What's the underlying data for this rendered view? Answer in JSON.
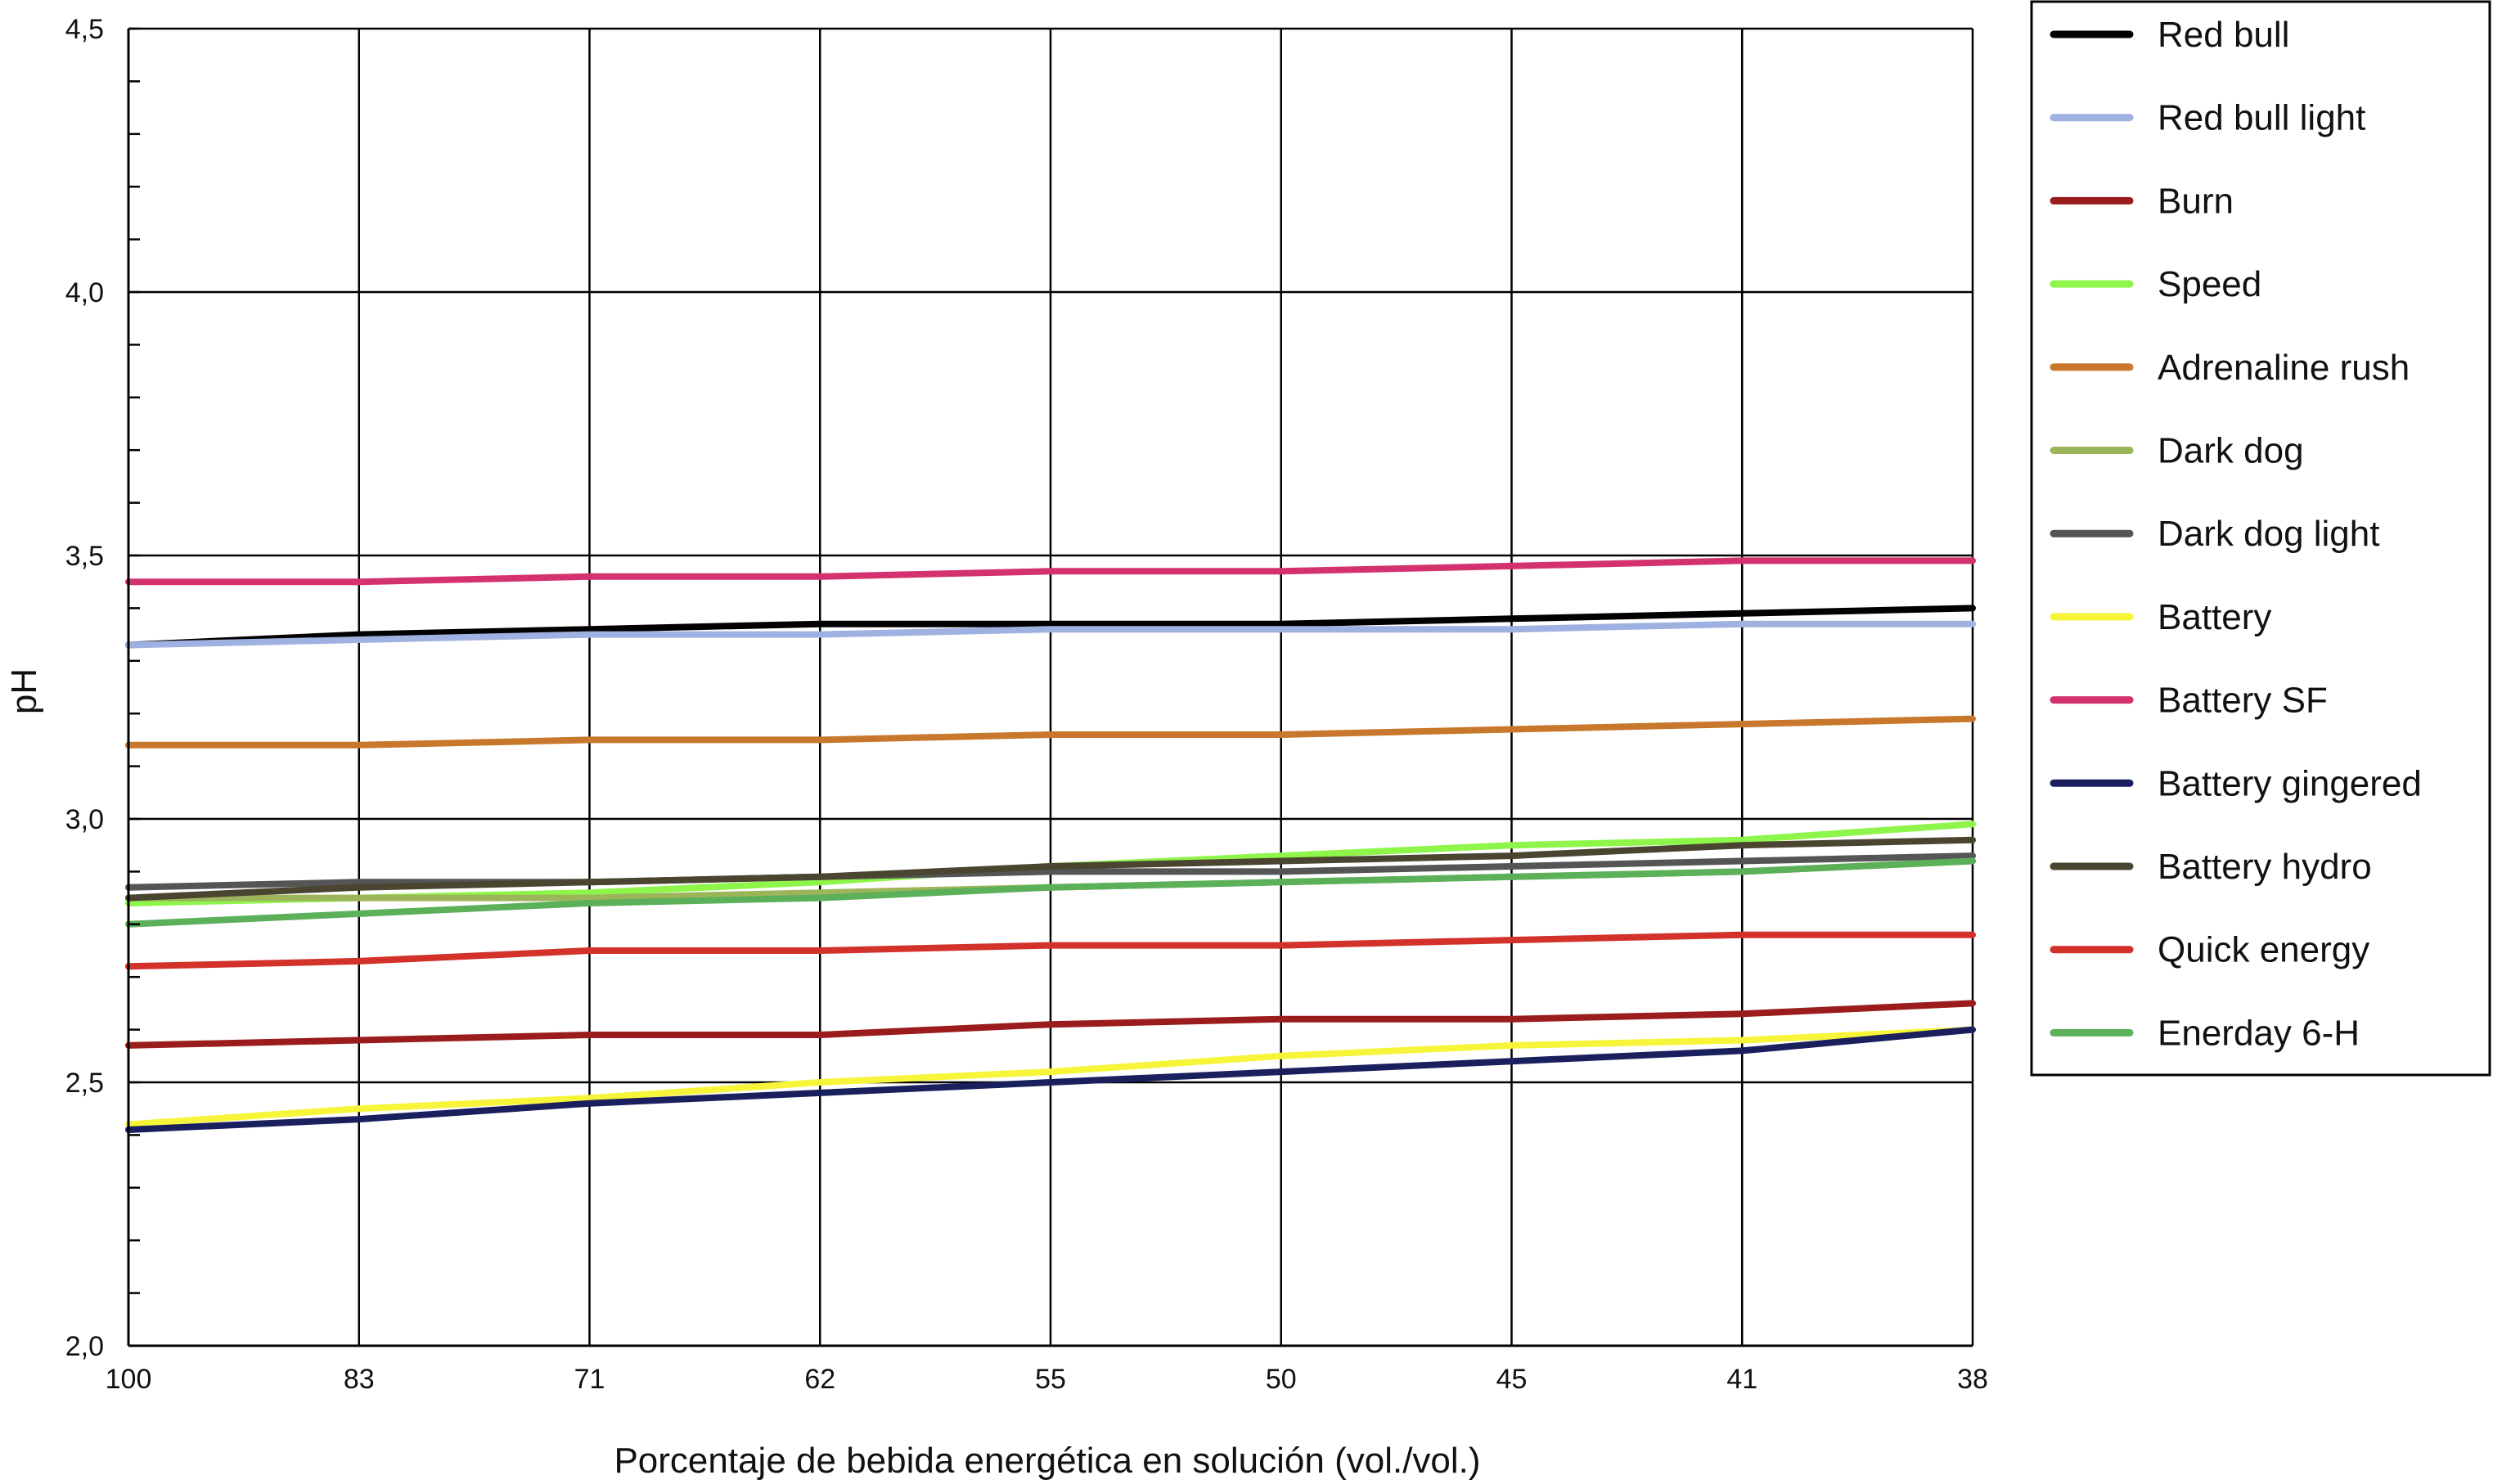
{
  "chart_data": {
    "type": "line",
    "xlabel": "Porcentaje de bebida energética en solución (vol./vol.)",
    "ylabel": "pH",
    "categories": [
      "100",
      "83",
      "71",
      "62",
      "55",
      "50",
      "45",
      "41",
      "38"
    ],
    "y_ticks": [
      "2,0",
      "2,5",
      "3,0",
      "3,5",
      "4,0",
      "4,5"
    ],
    "ylim": [
      2.0,
      4.5
    ],
    "grid": true,
    "legend_position": "right",
    "series": [
      {
        "name": "Red bull",
        "color": "#000000",
        "values": [
          3.33,
          3.35,
          3.36,
          3.37,
          3.37,
          3.37,
          3.38,
          3.39,
          3.4
        ]
      },
      {
        "name": "Red bull light",
        "color": "#9fb1e0",
        "values": [
          3.33,
          3.34,
          3.35,
          3.35,
          3.36,
          3.36,
          3.36,
          3.37,
          3.37
        ]
      },
      {
        "name": "Burn",
        "color": "#9b1c1c",
        "values": [
          2.57,
          2.58,
          2.59,
          2.59,
          2.61,
          2.62,
          2.62,
          2.63,
          2.65
        ]
      },
      {
        "name": "Speed",
        "color": "#8ef54a",
        "values": [
          2.84,
          2.85,
          2.86,
          2.88,
          2.91,
          2.93,
          2.95,
          2.96,
          2.99
        ]
      },
      {
        "name": "Adrenaline rush",
        "color": "#c8782c",
        "values": [
          3.14,
          3.14,
          3.15,
          3.15,
          3.16,
          3.16,
          3.17,
          3.18,
          3.19
        ]
      },
      {
        "name": "Dark dog",
        "color": "#9cb55a",
        "values": [
          2.85,
          2.85,
          2.85,
          2.86,
          2.87,
          2.88,
          2.89,
          2.9,
          2.92
        ]
      },
      {
        "name": "Dark dog light",
        "color": "#555555",
        "values": [
          2.87,
          2.88,
          2.88,
          2.89,
          2.9,
          2.9,
          2.91,
          2.92,
          2.93
        ]
      },
      {
        "name": "Battery",
        "color": "#f7f53a",
        "values": [
          2.42,
          2.45,
          2.47,
          2.5,
          2.52,
          2.55,
          2.57,
          2.58,
          2.6
        ]
      },
      {
        "name": "Battery SF",
        "color": "#d4326e",
        "values": [
          3.45,
          3.45,
          3.46,
          3.46,
          3.47,
          3.47,
          3.48,
          3.49,
          3.49
        ]
      },
      {
        "name": "Battery gingered",
        "color": "#1a1f5e",
        "values": [
          2.41,
          2.43,
          2.46,
          2.48,
          2.5,
          2.52,
          2.54,
          2.56,
          2.6
        ]
      },
      {
        "name": "Battery hydro",
        "color": "#4a4530",
        "values": [
          2.85,
          2.87,
          2.88,
          2.89,
          2.91,
          2.92,
          2.93,
          2.95,
          2.96
        ]
      },
      {
        "name": "Quick energy",
        "color": "#d2322a",
        "values": [
          2.72,
          2.73,
          2.75,
          2.75,
          2.76,
          2.76,
          2.77,
          2.78,
          2.78
        ]
      },
      {
        "name": "Enerday 6-H",
        "color": "#5cb05a",
        "values": [
          2.8,
          2.82,
          2.84,
          2.85,
          2.87,
          2.88,
          2.89,
          2.9,
          2.92
        ]
      }
    ]
  }
}
